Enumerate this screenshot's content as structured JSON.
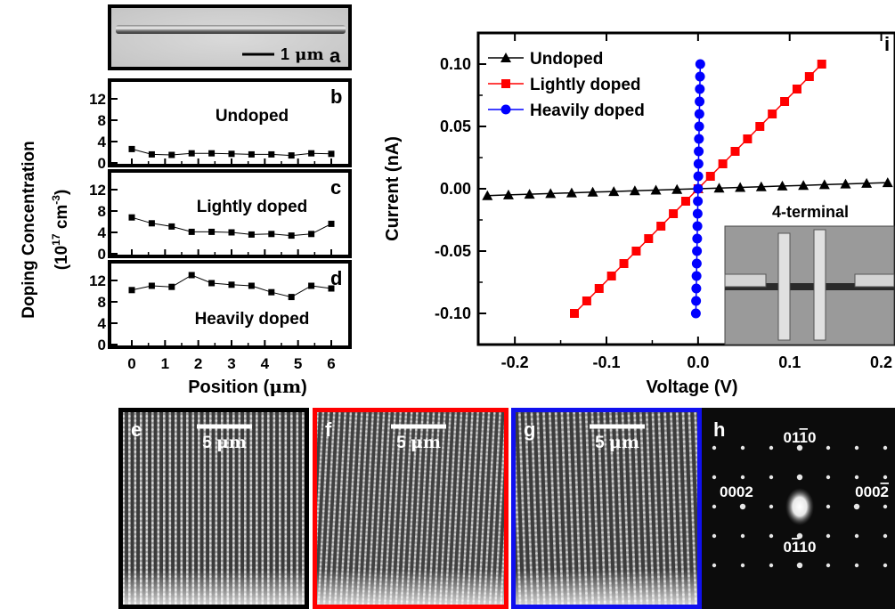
{
  "panel_a": {
    "letter": "a",
    "scalebar": "1",
    "scalebar_unit": "μm"
  },
  "profile_panels": [
    {
      "letter": "b",
      "label": "Undoped"
    },
    {
      "letter": "c",
      "label": "Lightly doped"
    },
    {
      "letter": "d",
      "label": "Heavily doped"
    }
  ],
  "profile_ylabel_line1": "Doping Concentration",
  "profile_ylabel_line2_pre": "(10",
  "profile_ylabel_line2_exp1": "17",
  "profile_ylabel_line2_mid": " cm",
  "profile_ylabel_line2_exp2": "-3",
  "profile_ylabel_line2_post": ")",
  "profile_xlabel_pre": "Position (",
  "profile_xlabel_unit": "μm",
  "profile_xlabel_post": ")",
  "iv_panel": {
    "letter": "i",
    "xlabel": "Voltage (V)",
    "ylabel": "Current (nA)",
    "inset_label": "4-terminal"
  },
  "images": [
    {
      "letter": "e",
      "scalebar": "5",
      "unit": "μm",
      "border": "#000000"
    },
    {
      "letter": "f",
      "scalebar": "5",
      "unit": "μm",
      "border": "#ff0000"
    },
    {
      "letter": "g",
      "scalebar": "5",
      "unit": "μm",
      "border": "#1010ee"
    }
  ],
  "diffraction": {
    "letter": "h",
    "labels": [
      {
        "pre": "01",
        "bar": "1",
        "post": "0"
      },
      {
        "pre": "0002",
        "bar": "",
        "post": ""
      },
      {
        "pre": "000",
        "bar": "2",
        "post": ""
      },
      {
        "pre": "0",
        "bar": "1",
        "post": "10"
      }
    ]
  },
  "chart_data": [
    {
      "type": "scatter",
      "panel": "b",
      "series": [
        {
          "name": "Undoped",
          "x": [
            0,
            0.6,
            1.2,
            1.8,
            2.4,
            3.0,
            3.6,
            4.2,
            4.8,
            5.4,
            6.0
          ],
          "y": [
            2.6,
            1.6,
            1.5,
            1.8,
            1.8,
            1.7,
            1.6,
            1.6,
            1.4,
            1.8,
            1.7
          ]
        }
      ],
      "xlim": [
        -0.5,
        6.5
      ],
      "ylim": [
        0,
        15
      ],
      "yticks": [
        "0",
        "4",
        "8",
        "12"
      ],
      "xticks": [
        "0",
        "1",
        "2",
        "3",
        "4",
        "5",
        "6"
      ]
    },
    {
      "type": "scatter",
      "panel": "c",
      "series": [
        {
          "name": "Lightly doped",
          "x": [
            0,
            0.6,
            1.2,
            1.8,
            2.4,
            3.0,
            3.6,
            4.2,
            4.8,
            5.4,
            6.0
          ],
          "y": [
            6.8,
            5.7,
            5.1,
            4.1,
            4.1,
            4.0,
            3.6,
            3.7,
            3.4,
            3.7,
            5.6
          ]
        }
      ],
      "xlim": [
        -0.5,
        6.5
      ],
      "ylim": [
        0,
        15
      ],
      "yticks": [
        "0",
        "4",
        "8",
        "12"
      ]
    },
    {
      "type": "scatter",
      "panel": "d",
      "series": [
        {
          "name": "Heavily doped",
          "x": [
            0,
            0.6,
            1.2,
            1.8,
            2.4,
            3.0,
            3.6,
            4.2,
            4.8,
            5.4,
            6.0
          ],
          "y": [
            10.2,
            11.0,
            10.8,
            13.0,
            11.5,
            11.2,
            11.0,
            9.8,
            8.9,
            11.0,
            10.5
          ]
        }
      ],
      "xlim": [
        -0.5,
        6.5
      ],
      "ylim": [
        0,
        15
      ],
      "yticks": [
        "0",
        "4",
        "8",
        "12"
      ]
    },
    {
      "type": "line",
      "panel": "i",
      "xlabel": "Voltage (V)",
      "ylabel": "Current (nA)",
      "xlim": [
        -0.24,
        0.215
      ],
      "ylim": [
        -0.125,
        0.125
      ],
      "xticks": [
        -0.2,
        -0.1,
        0.0,
        0.1,
        0.2
      ],
      "xtick_labels": [
        "-0.2",
        "-0.1",
        "0.0",
        "0.1",
        "0.2"
      ],
      "yticks": [
        -0.1,
        -0.05,
        0.0,
        0.05,
        0.1
      ],
      "ytick_labels": [
        "-0.10",
        "-0.05",
        "0.00",
        "0.05",
        "0.10"
      ],
      "legend_position": "top-left",
      "series": [
        {
          "name": "Undoped",
          "color": "#000000",
          "marker": "triangle",
          "x": [
            -0.23,
            -0.207,
            -0.184,
            -0.161,
            -0.138,
            -0.115,
            -0.092,
            -0.069,
            -0.046,
            -0.023,
            0.0,
            0.023,
            0.046,
            0.069,
            0.092,
            0.115,
            0.138,
            0.161,
            0.184,
            0.207
          ],
          "y": [
            -0.0055,
            -0.0049,
            -0.0044,
            -0.0038,
            -0.0033,
            -0.0027,
            -0.0022,
            -0.0016,
            -0.0011,
            -0.0005,
            0.0,
            0.0005,
            0.0011,
            0.0016,
            0.0022,
            0.0027,
            0.0033,
            0.0038,
            0.0044,
            0.0049
          ]
        },
        {
          "name": "Lightly doped",
          "color": "#ff0000",
          "marker": "square",
          "x": [
            -0.135,
            -0.1215,
            -0.108,
            -0.0945,
            -0.081,
            -0.0675,
            -0.054,
            -0.0405,
            -0.027,
            -0.0135,
            0.0,
            0.0135,
            0.027,
            0.0405,
            0.054,
            0.0675,
            0.081,
            0.0945,
            0.108,
            0.1215,
            0.135
          ],
          "y": [
            -0.1,
            -0.09,
            -0.08,
            -0.07,
            -0.06,
            -0.05,
            -0.04,
            -0.03,
            -0.02,
            -0.01,
            0.0,
            0.01,
            0.02,
            0.03,
            0.04,
            0.05,
            0.06,
            0.07,
            0.08,
            0.09,
            0.1
          ]
        },
        {
          "name": "Heavily doped",
          "color": "#0000ff",
          "marker": "circle",
          "x": [
            -0.0024,
            -0.00216,
            -0.00192,
            -0.00168,
            -0.00144,
            -0.0012,
            -0.00096,
            -0.00072,
            -0.00048,
            -0.00024,
            0.0,
            0.00024,
            0.00048,
            0.00072,
            0.00096,
            0.0012,
            0.00144,
            0.00168,
            0.00192,
            0.00216,
            0.0024
          ],
          "y": [
            -0.1,
            -0.09,
            -0.08,
            -0.07,
            -0.06,
            -0.05,
            -0.04,
            -0.03,
            -0.02,
            -0.01,
            0.0,
            0.01,
            0.02,
            0.03,
            0.04,
            0.05,
            0.06,
            0.07,
            0.08,
            0.09,
            0.1
          ]
        }
      ]
    }
  ]
}
